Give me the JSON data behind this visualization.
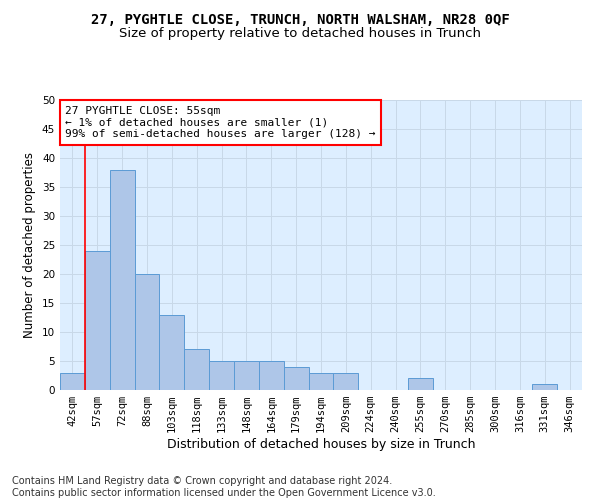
{
  "title": "27, PYGHTLE CLOSE, TRUNCH, NORTH WALSHAM, NR28 0QF",
  "subtitle": "Size of property relative to detached houses in Trunch",
  "xlabel": "Distribution of detached houses by size in Trunch",
  "ylabel": "Number of detached properties",
  "categories": [
    "42sqm",
    "57sqm",
    "72sqm",
    "88sqm",
    "103sqm",
    "118sqm",
    "133sqm",
    "148sqm",
    "164sqm",
    "179sqm",
    "194sqm",
    "209sqm",
    "224sqm",
    "240sqm",
    "255sqm",
    "270sqm",
    "285sqm",
    "300sqm",
    "316sqm",
    "331sqm",
    "346sqm"
  ],
  "values": [
    3,
    24,
    38,
    20,
    13,
    7,
    5,
    5,
    5,
    4,
    3,
    3,
    0,
    0,
    2,
    0,
    0,
    0,
    0,
    1,
    0
  ],
  "bar_color": "#aec6e8",
  "bar_edgecolor": "#5b9bd5",
  "grid_color": "#c8d8e8",
  "background_color": "#ddeeff",
  "annotation_text": "27 PYGHTLE CLOSE: 55sqm\n← 1% of detached houses are smaller (1)\n99% of semi-detached houses are larger (128) →",
  "annotation_box_edgecolor": "red",
  "vline_color": "red",
  "ylim": [
    0,
    50
  ],
  "yticks": [
    0,
    5,
    10,
    15,
    20,
    25,
    30,
    35,
    40,
    45,
    50
  ],
  "footer": "Contains HM Land Registry data © Crown copyright and database right 2024.\nContains public sector information licensed under the Open Government Licence v3.0.",
  "title_fontsize": 10,
  "subtitle_fontsize": 9.5,
  "xlabel_fontsize": 9,
  "ylabel_fontsize": 8.5,
  "tick_fontsize": 7.5,
  "annotation_fontsize": 8,
  "footer_fontsize": 7
}
